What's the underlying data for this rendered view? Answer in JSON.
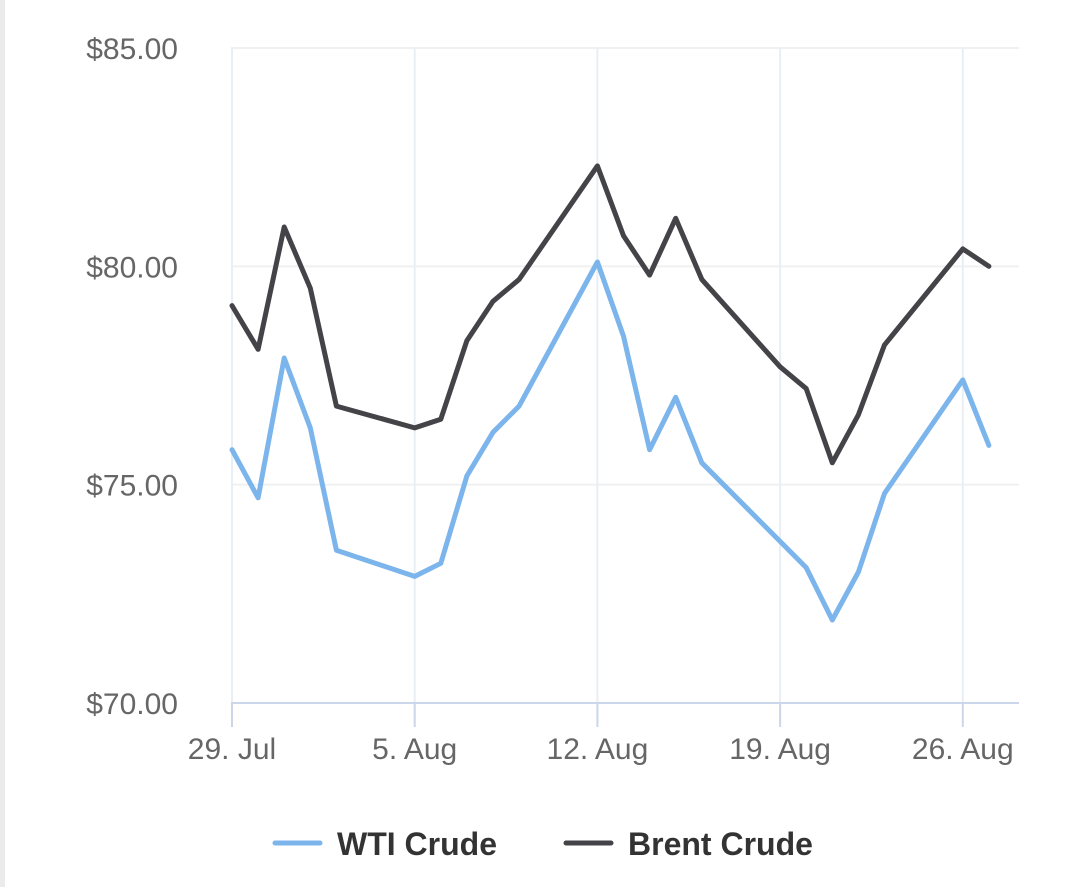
{
  "chart_data": {
    "type": "line",
    "x": [
      "29 Jul",
      "30 Jul",
      "31 Jul",
      "1 Aug",
      "2 Aug",
      "5 Aug",
      "6 Aug",
      "7 Aug",
      "8 Aug",
      "9 Aug",
      "12 Aug",
      "13 Aug",
      "14 Aug",
      "15 Aug",
      "16 Aug",
      "19 Aug",
      "20 Aug",
      "21 Aug",
      "22 Aug",
      "23 Aug",
      "26 Aug",
      "27 Aug"
    ],
    "x_tick_labels": [
      "29. Jul",
      "5. Aug",
      "12. Aug",
      "19. Aug",
      "26. Aug"
    ],
    "y_tick_labels": [
      "$85.00",
      "$80.00",
      "$75.00",
      "$70.00"
    ],
    "ylim": [
      70,
      85
    ],
    "grid": true,
    "legend_position": "bottom-center",
    "series": [
      {
        "name": "WTI Crude",
        "color": "#7cb5ec",
        "values": [
          75.8,
          74.7,
          77.9,
          76.3,
          73.5,
          72.9,
          73.2,
          75.2,
          76.2,
          76.8,
          80.1,
          78.4,
          75.8,
          77.0,
          75.5,
          73.7,
          73.1,
          71.9,
          73.0,
          74.8,
          77.4,
          75.9
        ]
      },
      {
        "name": "Brent Crude",
        "color": "#434348",
        "values": [
          79.1,
          78.1,
          80.9,
          79.5,
          76.8,
          76.3,
          76.5,
          78.3,
          79.2,
          79.7,
          82.3,
          80.7,
          79.8,
          81.1,
          79.7,
          77.7,
          77.2,
          75.5,
          76.6,
          78.2,
          80.4,
          80.0
        ]
      }
    ]
  }
}
